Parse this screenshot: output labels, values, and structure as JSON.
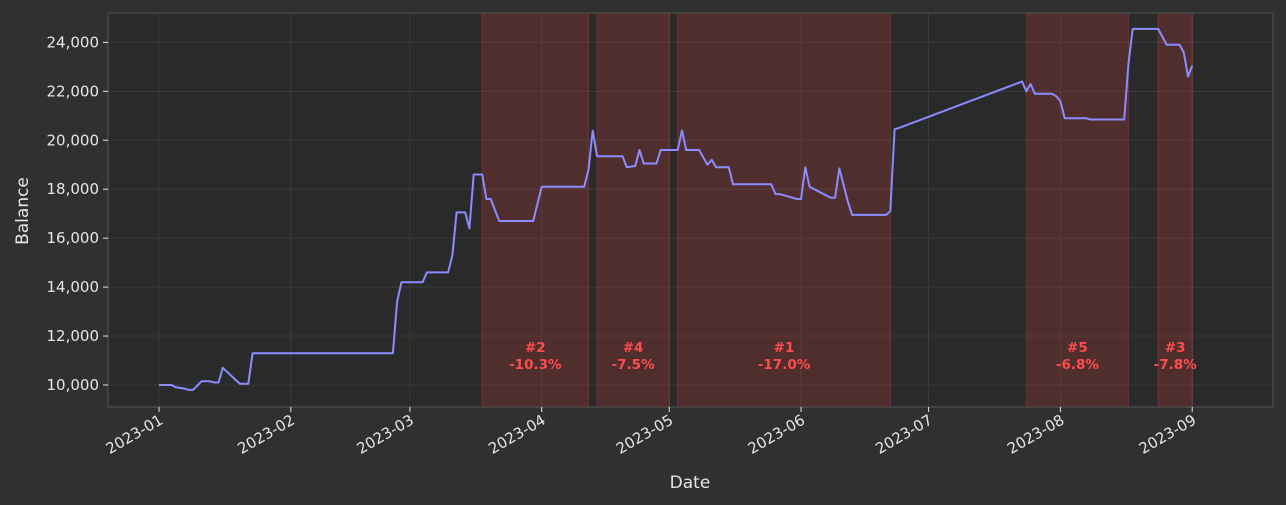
{
  "chart_data": {
    "type": "line",
    "title": "",
    "xlabel": "Date",
    "ylabel": "Balance",
    "ylim": [
      9100,
      25200
    ],
    "xlim": [
      "2022-12-20",
      "2023-09-20"
    ],
    "grid": true,
    "x_ticks": [
      "2023-01",
      "2023-02",
      "2023-03",
      "2023-04",
      "2023-05",
      "2023-06",
      "2023-07",
      "2023-08",
      "2023-09"
    ],
    "y_ticks": [
      10000,
      12000,
      14000,
      16000,
      18000,
      20000,
      22000,
      24000
    ],
    "y_tick_labels": [
      "10,000",
      "12,000",
      "14,000",
      "16,000",
      "18,000",
      "20,000",
      "22,000",
      "24,000"
    ],
    "colors": {
      "line": "#8a8cff",
      "drawdown": "#ff4444",
      "label": "#ff4d4d",
      "plot_bg": "#2a2a2a",
      "page_bg": "#303030",
      "grid": "#3e3e3e",
      "spine": "#555555",
      "text": "#e6e6e6"
    },
    "drawdowns": [
      {
        "label": "#2",
        "value": "-10.3%",
        "start": "2023-03-18",
        "end": "2023-04-12"
      },
      {
        "label": "#4",
        "value": "-7.5%",
        "start": "2023-04-14",
        "end": "2023-05-01"
      },
      {
        "label": "#1",
        "value": "-17.0%",
        "start": "2023-05-03",
        "end": "2023-06-22"
      },
      {
        "label": "#5",
        "value": "-6.8%",
        "start": "2023-07-24",
        "end": "2023-08-17"
      },
      {
        "label": "#3",
        "value": "-7.8%",
        "start": "2023-08-24",
        "end": "2023-09-01"
      }
    ],
    "series": [
      {
        "name": "",
        "x": [
          "2023-01-01",
          "2023-01-04",
          "2023-01-05",
          "2023-01-06",
          "2023-01-07",
          "2023-01-08",
          "2023-01-09",
          "2023-01-11",
          "2023-01-12",
          "2023-01-13",
          "2023-01-14",
          "2023-01-15",
          "2023-01-16",
          "2023-01-20",
          "2023-01-22",
          "2023-01-23",
          "2023-02-25",
          "2023-02-26",
          "2023-02-27",
          "2023-03-04",
          "2023-03-05",
          "2023-03-10",
          "2023-03-11",
          "2023-03-12",
          "2023-03-14",
          "2023-03-15",
          "2023-03-16",
          "2023-03-18",
          "2023-03-19",
          "2023-03-20",
          "2023-03-22",
          "2023-03-30",
          "2023-04-01",
          "2023-04-11",
          "2023-04-12",
          "2023-04-13",
          "2023-04-14",
          "2023-04-20",
          "2023-04-21",
          "2023-04-23",
          "2023-04-24",
          "2023-04-25",
          "2023-04-28",
          "2023-04-29",
          "2023-05-03",
          "2023-05-04",
          "2023-05-05",
          "2023-05-08",
          "2023-05-10",
          "2023-05-11",
          "2023-05-12",
          "2023-05-15",
          "2023-05-16",
          "2023-05-25",
          "2023-05-26",
          "2023-05-27",
          "2023-05-31",
          "2023-06-01",
          "2023-06-02",
          "2023-06-03",
          "2023-06-08",
          "2023-06-09",
          "2023-06-10",
          "2023-06-12",
          "2023-06-13",
          "2023-06-20",
          "2023-06-21",
          "2023-06-22",
          "2023-06-23",
          "2023-06-24",
          "2023-07-23",
          "2023-07-24",
          "2023-07-25",
          "2023-07-26",
          "2023-07-30",
          "2023-07-31",
          "2023-08-01",
          "2023-08-02",
          "2023-08-07",
          "2023-08-08",
          "2023-08-16",
          "2023-08-17",
          "2023-08-18",
          "2023-08-24",
          "2023-08-26",
          "2023-08-29",
          "2023-08-30",
          "2023-08-31",
          "2023-09-01"
        ],
        "values": [
          10000,
          10000,
          9900,
          9880,
          9850,
          9800,
          9800,
          10150,
          10150,
          10150,
          10100,
          10100,
          10700,
          10050,
          10050,
          11300,
          11300,
          13400,
          14200,
          14200,
          14600,
          14600,
          15300,
          17050,
          17050,
          16400,
          18600,
          18600,
          17600,
          17600,
          16700,
          16700,
          18100,
          18100,
          18800,
          20400,
          19350,
          19350,
          18900,
          18950,
          19600,
          19050,
          19050,
          19600,
          19600,
          20400,
          19600,
          19600,
          19000,
          19200,
          18900,
          18900,
          18200,
          18200,
          17800,
          17800,
          17600,
          17600,
          18900,
          18100,
          17650,
          17650,
          18850,
          17500,
          16950,
          16950,
          16950,
          17100,
          20450,
          20500,
          22400,
          22000,
          22300,
          21900,
          21900,
          21800,
          21600,
          20900,
          20900,
          20850,
          20850,
          23100,
          24550,
          24550,
          23900,
          23900,
          23600,
          22600,
          23050
        ]
      }
    ]
  }
}
